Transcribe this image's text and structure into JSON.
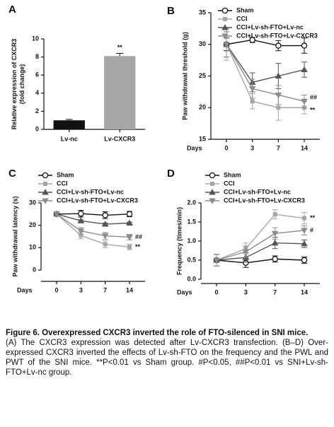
{
  "chart_data": [
    {
      "type": "bar",
      "panel": "A",
      "ylabel": [
        "Relative expression of CXCR3",
        "(fold change)"
      ],
      "categories": [
        "Lv-nc",
        "Lv-CXCR3"
      ],
      "values": [
        1.0,
        8.1
      ],
      "errors": [
        0.1,
        0.3
      ],
      "colors": [
        "#111111",
        "#a6a6a6"
      ],
      "annotations": [
        "**"
      ],
      "ylim": [
        0,
        10
      ],
      "yticks": [
        0,
        2,
        4,
        6,
        8,
        10
      ]
    },
    {
      "type": "line",
      "panel": "B",
      "ylabel": [
        "Paw withdrawal threshold (g)"
      ],
      "xlabel": "Days",
      "categories": [
        "0",
        "3",
        "7",
        "14"
      ],
      "series": [
        {
          "name": "Sham",
          "color": "#111111",
          "marker": "circle",
          "values": [
            30,
            30.7,
            29.8,
            29.8
          ],
          "errors": [
            1.0,
            0.4,
            0.8,
            1.2
          ]
        },
        {
          "name": "CCI",
          "color": "#a6a6a6",
          "marker": "square",
          "values": [
            30,
            21,
            20,
            20
          ],
          "errors": [
            2.5,
            1.2,
            2.0,
            1.0
          ]
        },
        {
          "name": "CCI+Lv-sh-FTO+Lv-nc",
          "color": "#555555",
          "marker": "up",
          "values": [
            30,
            24,
            25,
            26
          ],
          "errors": [
            2.0,
            1.5,
            2.0,
            1.2
          ]
        },
        {
          "name": "CCI+Lv-sh-FTO+Lv-CXCR3",
          "color": "#8c8c8c",
          "marker": "down",
          "values": [
            30,
            23,
            22,
            21
          ],
          "errors": [
            2.0,
            1.5,
            1.5,
            1.0
          ]
        }
      ],
      "annotations": [
        "##",
        "**"
      ],
      "ylim": [
        15,
        35
      ],
      "yticks": [
        15,
        20,
        25,
        30,
        35
      ]
    },
    {
      "type": "line",
      "panel": "C",
      "ylabel": [
        "Paw withdrawal latency (s)"
      ],
      "xlabel": "Days",
      "categories": [
        "0",
        "3",
        "7",
        "14"
      ],
      "series": [
        {
          "name": "Sham",
          "color": "#111111",
          "marker": "circle",
          "values": [
            25,
            25.2,
            24.5,
            25
          ],
          "errors": [
            1.0,
            1.5,
            1.5,
            1.2
          ]
        },
        {
          "name": "CCI",
          "color": "#a6a6a6",
          "marker": "square",
          "values": [
            25,
            15.5,
            11.5,
            10.3
          ],
          "errors": [
            1.0,
            1.5,
            1.5,
            1.2
          ]
        },
        {
          "name": "CCI+Lv-sh-FTO+Lv-nc",
          "color": "#555555",
          "marker": "up",
          "values": [
            25,
            22,
            20.5,
            21
          ],
          "errors": [
            1.0,
            0.5,
            0.5,
            0.4
          ]
        },
        {
          "name": "CCI+Lv-sh-FTO+Lv-CXCR3",
          "color": "#8c8c8c",
          "marker": "down",
          "values": [
            25,
            17.5,
            15.3,
            14.7
          ],
          "errors": [
            1.0,
            1.5,
            1.5,
            1.2
          ]
        }
      ],
      "annotations": [
        "##",
        "**"
      ],
      "ylim": [
        0,
        30
      ],
      "yticks": [
        0,
        10,
        20,
        30
      ]
    },
    {
      "type": "line",
      "panel": "D",
      "ylabel": [
        "Frequency (times/min)"
      ],
      "xlabel": "Days",
      "categories": [
        "0",
        "3",
        "7",
        "14"
      ],
      "series": [
        {
          "name": "Sham",
          "color": "#111111",
          "marker": "circle",
          "values": [
            0.5,
            0.43,
            0.53,
            0.5
          ],
          "errors": [
            0.15,
            0.12,
            0.08,
            0.08
          ]
        },
        {
          "name": "CCI",
          "color": "#a6a6a6",
          "marker": "square",
          "values": [
            0.5,
            0.8,
            1.7,
            1.6
          ],
          "errors": [
            0.15,
            0.15,
            0.12,
            0.15
          ]
        },
        {
          "name": "CCI+Lv-sh-FTO+Lv-nc",
          "color": "#555555",
          "marker": "up",
          "values": [
            0.5,
            0.57,
            0.95,
            0.93
          ],
          "errors": [
            0.15,
            0.12,
            0.15,
            0.1
          ]
        },
        {
          "name": "CCI+Lv-sh-FTO+Lv-CXCR3",
          "color": "#8c8c8c",
          "marker": "down",
          "values": [
            0.5,
            0.72,
            1.2,
            1.28
          ],
          "errors": [
            0.15,
            0.15,
            0.15,
            0.12
          ]
        }
      ],
      "annotations": [
        "**",
        "#"
      ],
      "ylim": [
        0,
        2
      ],
      "yticks": [
        {
          "value": 0,
          "label": "0.0"
        },
        0.5,
        {
          "value": 1,
          "label": "1.0"
        },
        1.5,
        {
          "value": 2,
          "label": "2.0"
        }
      ]
    }
  ],
  "caption": {
    "title": "Figure 6. Overexpressed CXCR3 inverted the role of FTO-silenced in SNI mice.",
    "body": "(A) The CXCR3 expression was detected after Lv-CXCR3 transfection. (B–D) Over-expressed CXCR3 inverted the effects of Lv-sh-FTO on the frequency and the PWL and PWT of the SNI mice. **P<0.01 vs Sham group. #P<0.05, ##P<0.01 vs SNI+Lv-sh-FTO+Lv-nc group."
  }
}
